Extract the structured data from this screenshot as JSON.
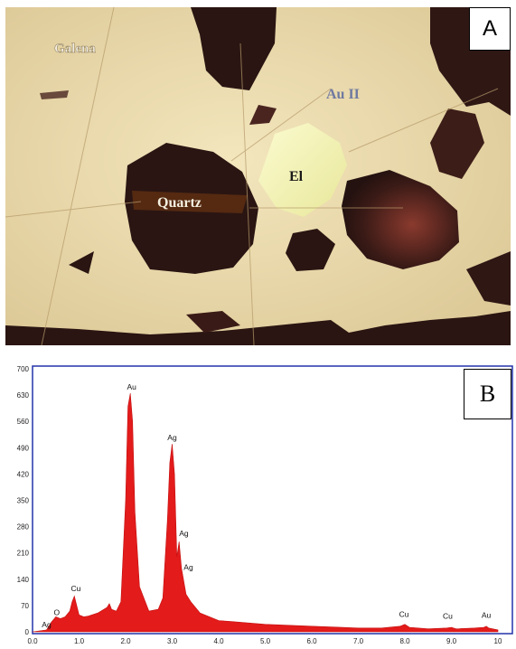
{
  "panel_a": {
    "letter": "A",
    "labels": {
      "galena": "Galena",
      "au_ii": "Au II",
      "quartz": "Quartz",
      "el": "El"
    }
  },
  "panel_b": {
    "letter": "B"
  },
  "colors": {
    "spectrum_fill": "#e31b1b",
    "frame": "#2233aa",
    "host_mineral": "#ecdcb0",
    "quartz_dark": "#2a1512",
    "electrum": "#f1f0a8"
  },
  "chart_data": {
    "type": "area",
    "title": "",
    "xlabel": "",
    "ylabel": "",
    "xlim": [
      0,
      10
    ],
    "ylim": [
      0,
      700
    ],
    "x_ticks": [
      "0.0",
      "1.0",
      "2.0",
      "3.0",
      "4.0",
      "5.0",
      "6.0",
      "7.0",
      "8.0",
      "9.0",
      "10"
    ],
    "y_ticks": [
      "0",
      "70",
      "140",
      "210",
      "280",
      "350",
      "420",
      "490",
      "560",
      "630",
      "700"
    ],
    "grid": false,
    "legend": "none",
    "series": [
      {
        "x": [
          0.0,
          0.3,
          0.4,
          0.5,
          0.6,
          0.7,
          0.8,
          0.85,
          0.9,
          0.95,
          1.0,
          1.1,
          1.2,
          1.4,
          1.6,
          1.65,
          1.7,
          1.8,
          1.9,
          2.0,
          2.05,
          2.1,
          2.15,
          2.2,
          2.3,
          2.5,
          2.7,
          2.8,
          2.9,
          2.95,
          3.0,
          3.05,
          3.1,
          3.15,
          3.2,
          3.3,
          3.4,
          3.6,
          4.0,
          5.0,
          6.0,
          7.0,
          7.5,
          7.9,
          8.0,
          8.1,
          8.5,
          8.9,
          9.0,
          9.1,
          9.5,
          9.7,
          9.75,
          9.8,
          10.0
        ],
        "y": [
          0,
          5,
          25,
          40,
          35,
          40,
          55,
          80,
          95,
          70,
          45,
          40,
          42,
          50,
          65,
          75,
          60,
          55,
          80,
          350,
          600,
          635,
          560,
          320,
          120,
          55,
          60,
          90,
          300,
          450,
          500,
          420,
          200,
          240,
          170,
          100,
          80,
          50,
          30,
          20,
          15,
          10,
          10,
          15,
          20,
          12,
          8,
          10,
          12,
          8,
          10,
          12,
          15,
          10,
          5
        ]
      }
    ],
    "annotations": [
      {
        "text": "Ag",
        "x": 0.3,
        "y": 12
      },
      {
        "text": "O",
        "x": 0.52,
        "y": 45
      },
      {
        "text": "Cu",
        "x": 0.93,
        "y": 108
      },
      {
        "text": "Au",
        "x": 2.13,
        "y": 645
      },
      {
        "text": "Ag",
        "x": 3.0,
        "y": 510
      },
      {
        "text": "Ag",
        "x": 3.25,
        "y": 255
      },
      {
        "text": "Ag",
        "x": 3.35,
        "y": 165
      },
      {
        "text": "Cu",
        "x": 7.98,
        "y": 40
      },
      {
        "text": "Cu",
        "x": 8.92,
        "y": 35
      },
      {
        "text": "Au",
        "x": 9.75,
        "y": 37
      }
    ]
  }
}
